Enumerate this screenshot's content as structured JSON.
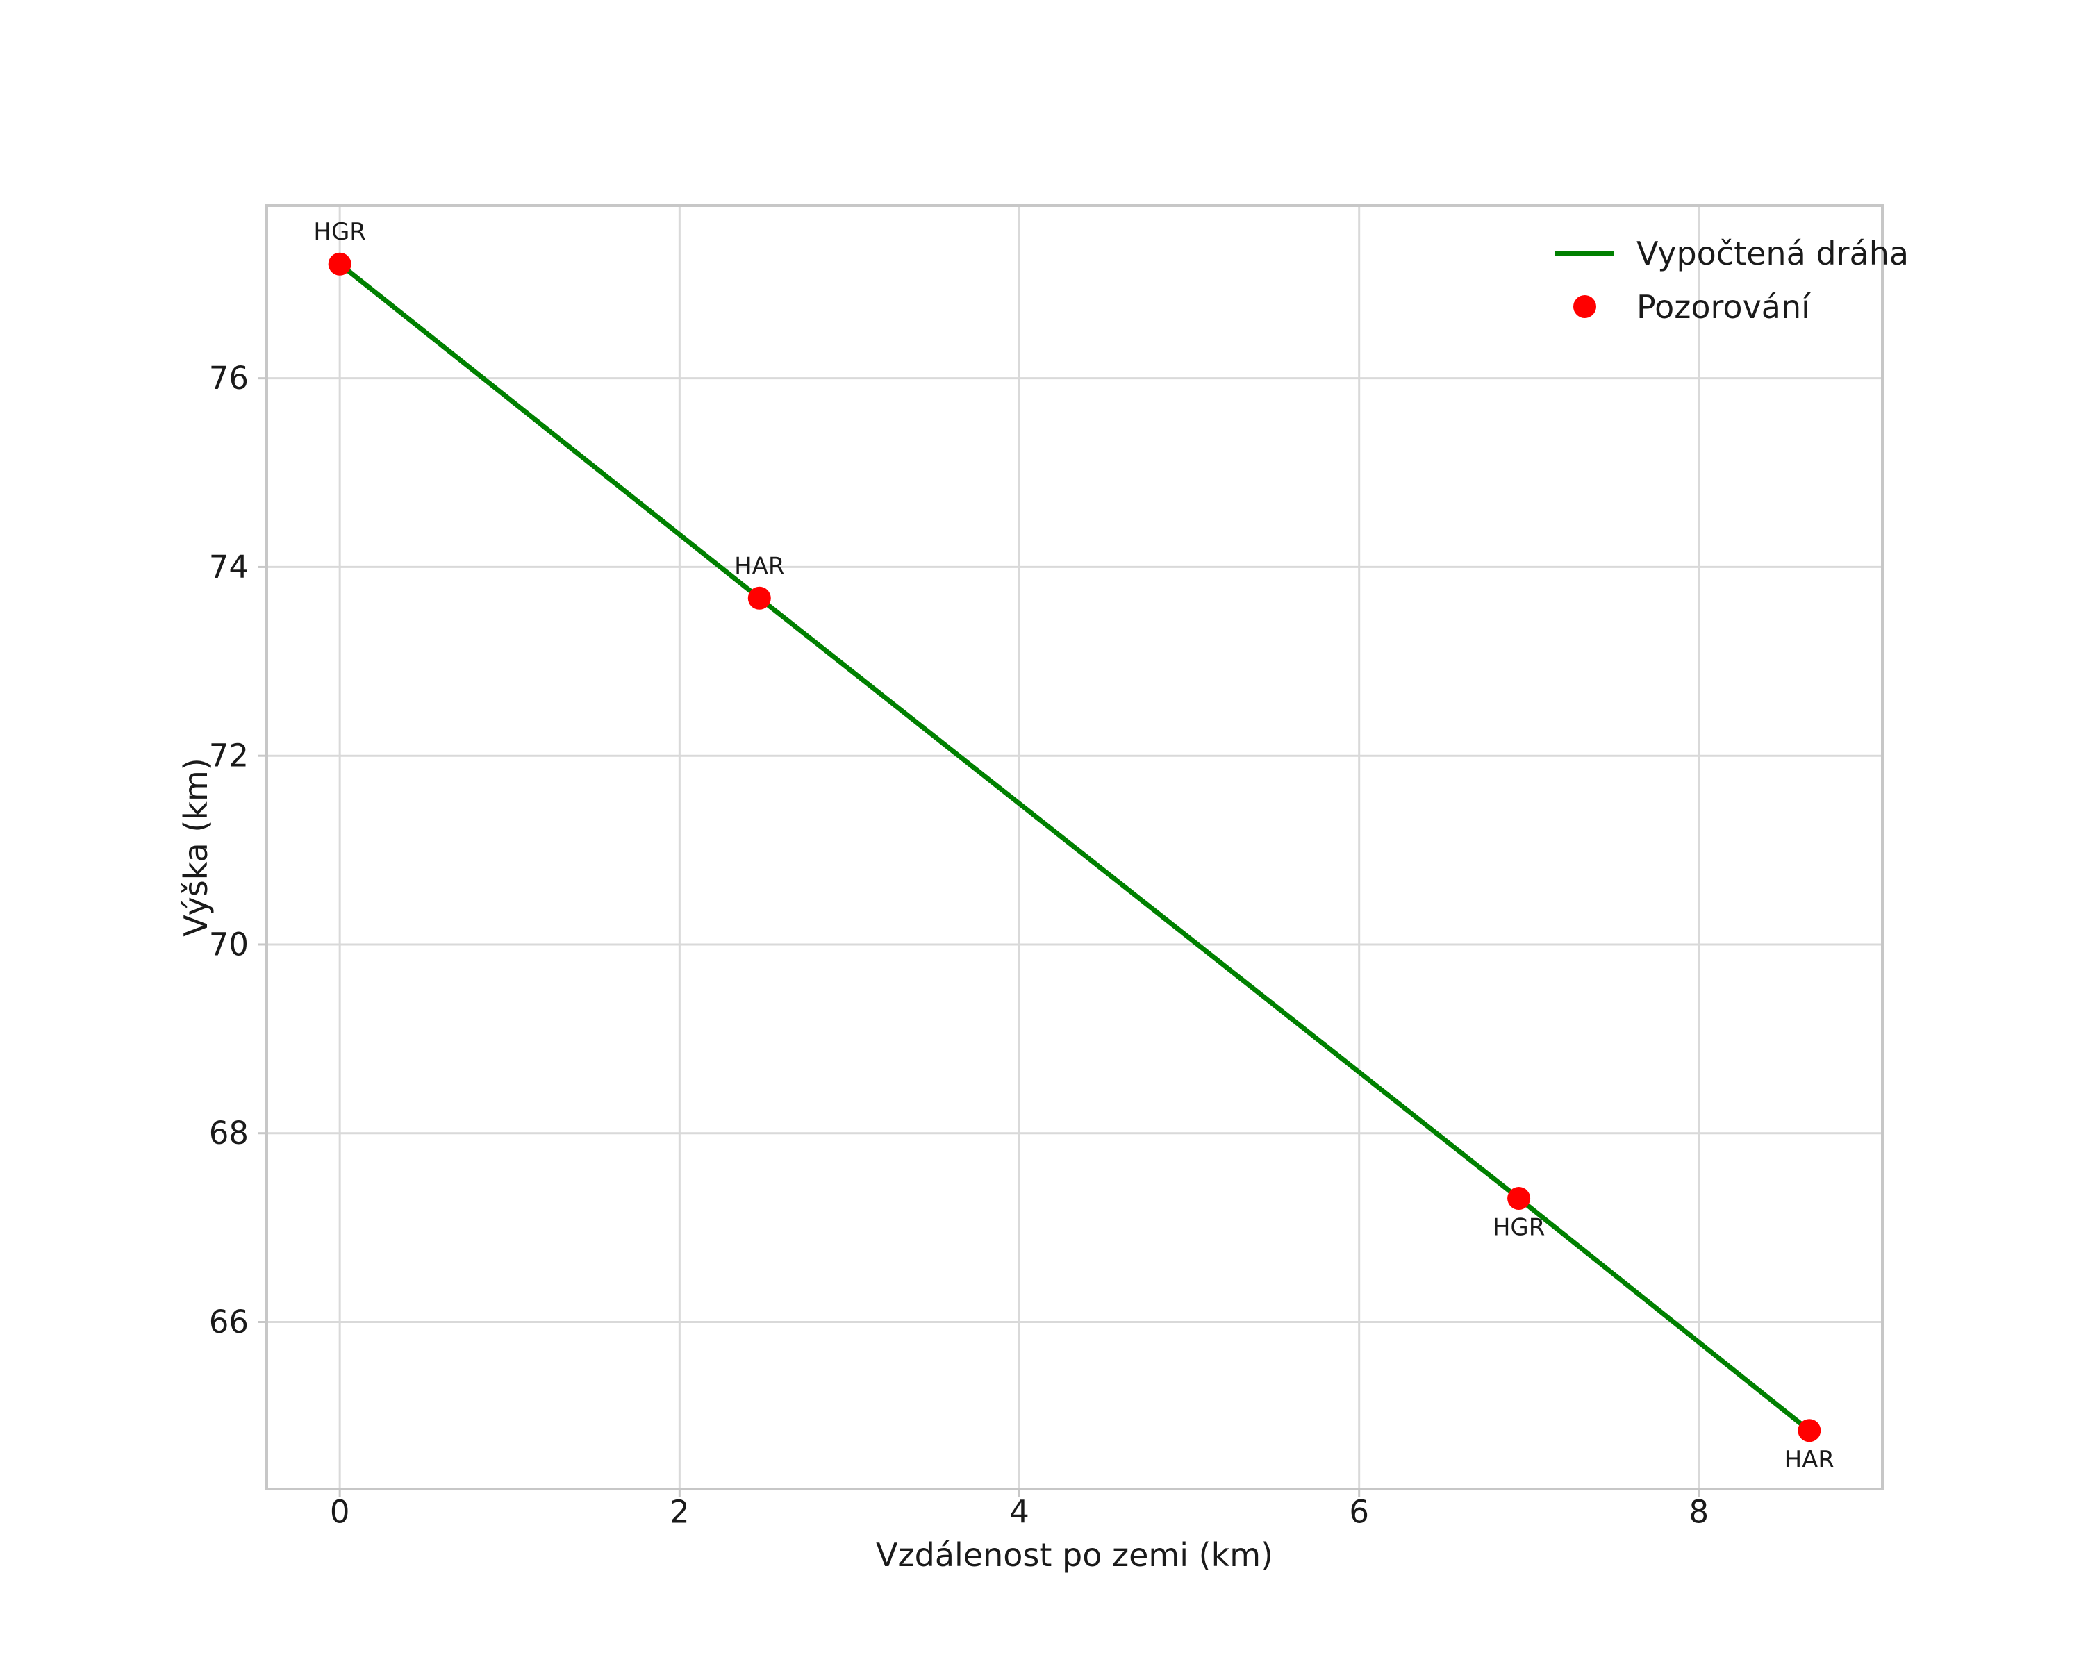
{
  "chart_data": {
    "type": "line",
    "title": "",
    "xlabel": "Vzdálenost po zemi (km)",
    "ylabel": "Výška (km)",
    "xlim": [
      -0.43,
      9.08
    ],
    "ylim": [
      64.23,
      77.83
    ],
    "xticks": [
      0,
      2,
      4,
      6,
      8
    ],
    "yticks": [
      66,
      68,
      70,
      72,
      74,
      76
    ],
    "grid": true,
    "legend": {
      "position": "upper right",
      "entries": [
        {
          "label": "Vypočtená dráha",
          "type": "line",
          "color": "#008000"
        },
        {
          "label": "Pozorování",
          "type": "marker",
          "color": "#ff0000"
        }
      ]
    },
    "series": [
      {
        "name": "Vypočtená dráha",
        "type": "line",
        "color": "#008000",
        "x": [
          0.0,
          2.47,
          6.94,
          8.65
        ],
        "y": [
          77.21,
          73.67,
          67.31,
          64.85
        ]
      },
      {
        "name": "Pozorování",
        "type": "scatter",
        "color": "#ff0000",
        "points": [
          {
            "x": 0.0,
            "y": 77.21,
            "label": "HGR",
            "label_position": "above"
          },
          {
            "x": 2.47,
            "y": 73.67,
            "label": "HAR",
            "label_position": "above"
          },
          {
            "x": 6.94,
            "y": 67.31,
            "label": "HGR",
            "label_position": "below"
          },
          {
            "x": 8.65,
            "y": 64.85,
            "label": "HAR",
            "label_position": "below"
          }
        ]
      }
    ],
    "colors": {
      "grid": "#d9d9d9",
      "spine": "#c7c7c7",
      "text": "#1a1a1a",
      "background": "#ffffff"
    }
  }
}
